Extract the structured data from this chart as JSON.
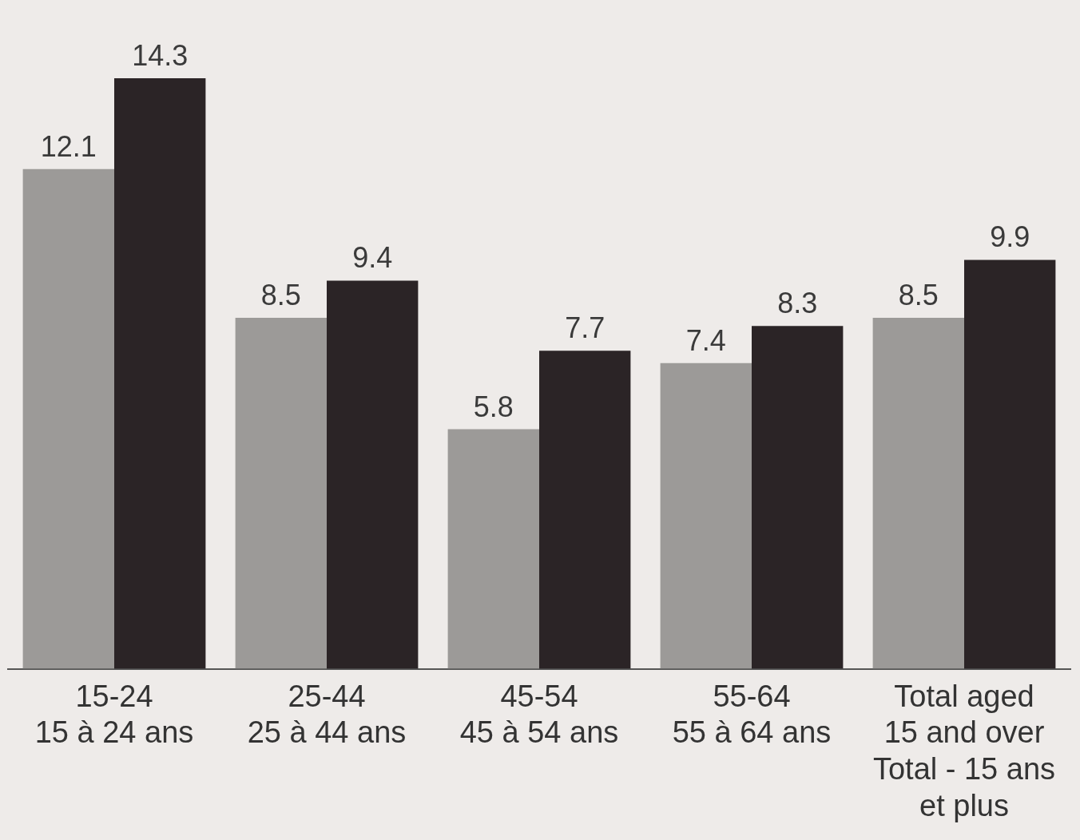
{
  "chart_data": {
    "type": "bar",
    "categories": [
      "15-24\n15 à 24 ans",
      "25-44\n25 à 44 ans",
      "45-54\n45 à 54 ans",
      "55-64\n55 à 64 ans",
      "Total aged\n15 and over\nTotal - 15 ans\net plus"
    ],
    "series": [
      {
        "color": "#9c9a98",
        "values": [
          12.1,
          8.5,
          5.8,
          7.4,
          8.5
        ]
      },
      {
        "color": "#2b2426",
        "values": [
          14.3,
          9.4,
          7.7,
          8.3,
          9.9
        ]
      }
    ],
    "data_labels": true
  }
}
